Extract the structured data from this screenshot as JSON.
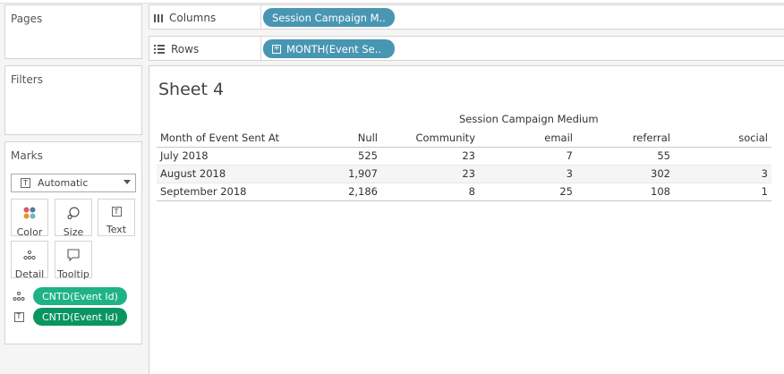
{
  "left_panel": {
    "pages_title": "Pages",
    "filters_title": "Filters",
    "marks": {
      "title": "Marks",
      "mark_type_icon": "text-type-icon",
      "mark_type": "Automatic",
      "buttons": [
        {
          "id": "color",
          "label": "Color",
          "icon": "color-dots-icon"
        },
        {
          "id": "size",
          "label": "Size",
          "icon": "size-circle-icon"
        },
        {
          "id": "text",
          "label": "Text",
          "icon": "text-t-icon"
        },
        {
          "id": "detail",
          "label": "Detail",
          "icon": "detail-dots-icon"
        },
        {
          "id": "tooltip",
          "label": "Tooltip",
          "icon": "speech-bubble-icon"
        }
      ],
      "pills": [
        {
          "icon": "detail-dots-icon",
          "label": "CNTD(Event Id)",
          "color": "#1fb384"
        },
        {
          "icon": "text-t-icon",
          "label": "CNTD(Event Id)",
          "color": "#0a9560"
        }
      ]
    }
  },
  "shelves": {
    "columns": {
      "label": "Columns",
      "pill": "Session Campaign M..",
      "pill_color": "#4996b2"
    },
    "rows": {
      "label": "Rows",
      "pill": "MONTH(Event Se..",
      "pill_color": "#4996b2"
    }
  },
  "sheet": {
    "title": "Sheet 4",
    "column_group_header": "Session Campaign Medium",
    "row_header": "Month of Event Sent At",
    "columns": [
      "Null",
      "Community",
      "email",
      "referral",
      "social"
    ],
    "rows": [
      {
        "label": "July 2018",
        "values": [
          "525",
          "23",
          "7",
          "55",
          ""
        ]
      },
      {
        "label": "August 2018",
        "values": [
          "1,907",
          "23",
          "3",
          "302",
          "3"
        ]
      },
      {
        "label": "September 2018",
        "values": [
          "2,186",
          "8",
          "25",
          "108",
          "1"
        ]
      }
    ]
  }
}
